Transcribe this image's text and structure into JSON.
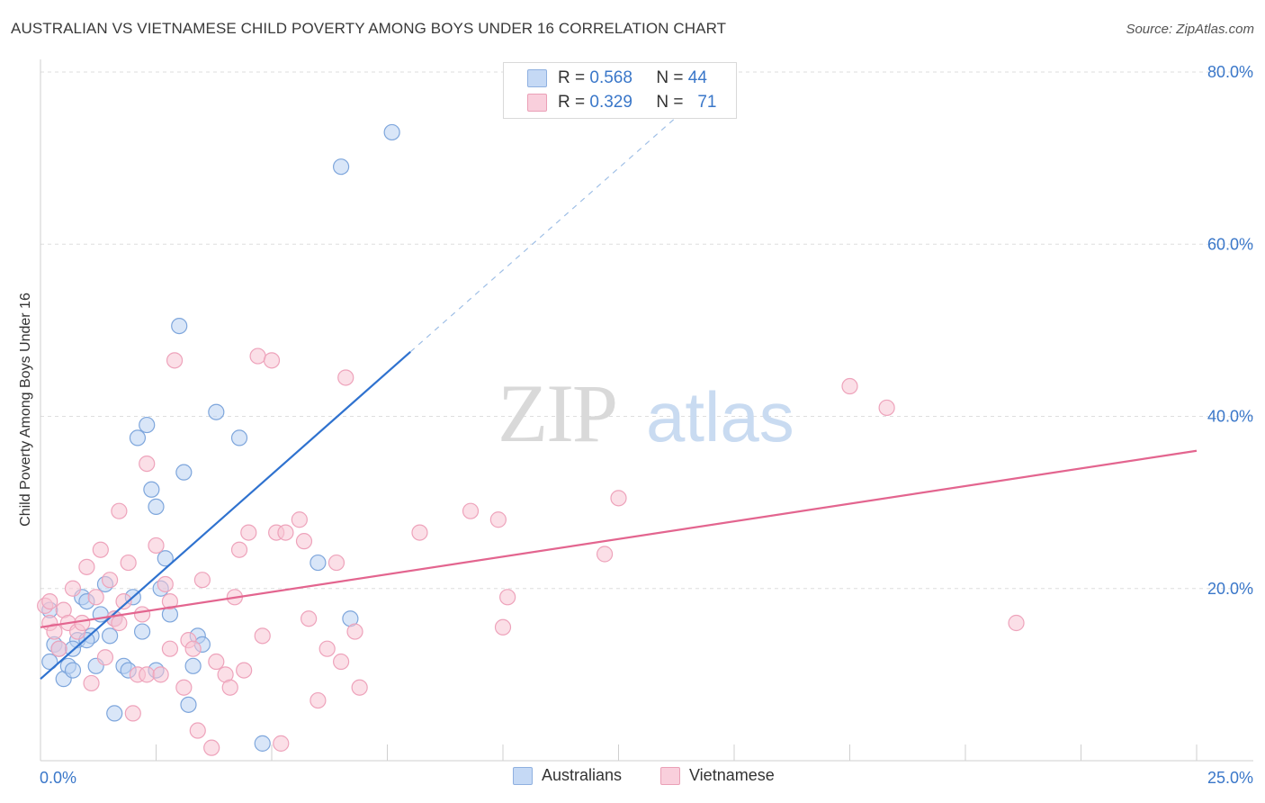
{
  "title": "AUSTRALIAN VS VIETNAMESE CHILD POVERTY AMONG BOYS UNDER 16 CORRELATION CHART",
  "source": "Source: ZipAtlas.com",
  "watermark": {
    "zip": "ZIP",
    "atlas": "atlas"
  },
  "legend": {
    "r_label": "R =",
    "n_label": "N =",
    "rows": [
      {
        "r": "0.568",
        "n": "44"
      },
      {
        "r": "0.329",
        "n": "71"
      }
    ]
  },
  "bottom_legend": [
    "Australians",
    "Vietnamese"
  ],
  "chart_data": {
    "type": "scatter",
    "title": "AUSTRALIAN VS VIETNAMESE CHILD POVERTY AMONG BOYS UNDER 16 CORRELATION CHART",
    "ylabel": "Child Poverty Among Boys Under 16",
    "xlabel": "",
    "xlim": [
      0,
      25
    ],
    "ylim": [
      0,
      80
    ],
    "x_tick_labels": [
      "0.0%",
      "25.0%"
    ],
    "y_tick_labels": [
      "20.0%",
      "40.0%",
      "60.0%",
      "80.0%"
    ],
    "y_ticks": [
      20,
      40,
      60,
      80
    ],
    "grid": true,
    "colors": {
      "australians": "#4f8bd6",
      "vietnamese": "#e8729a",
      "australians_fill": "#b9d2f2",
      "vietnamese_fill": "#f7c4d4",
      "tick_label": "#3a77c9"
    },
    "series": [
      {
        "name": "Australians",
        "trend": {
          "x0": 0.0,
          "y0": 9.5,
          "x1": 8.0,
          "y1": 47.5,
          "dash_to_x": 13.8,
          "dash_to_y": 75.0
        },
        "points": [
          [
            0.2,
            11.5
          ],
          [
            0.3,
            13.5
          ],
          [
            0.4,
            13.0
          ],
          [
            0.5,
            9.5
          ],
          [
            0.6,
            11.0
          ],
          [
            0.7,
            10.5
          ],
          [
            0.8,
            14.0
          ],
          [
            0.9,
            19.0
          ],
          [
            1.0,
            18.5
          ],
          [
            1.1,
            14.5
          ],
          [
            1.2,
            11.0
          ],
          [
            1.3,
            17.0
          ],
          [
            1.4,
            20.5
          ],
          [
            1.5,
            14.5
          ],
          [
            1.6,
            16.5
          ],
          [
            1.8,
            11.0
          ],
          [
            1.9,
            10.5
          ],
          [
            2.0,
            19.0
          ],
          [
            2.1,
            37.5
          ],
          [
            2.2,
            15.0
          ],
          [
            2.3,
            39.0
          ],
          [
            2.4,
            31.5
          ],
          [
            2.5,
            10.5
          ],
          [
            2.5,
            29.5
          ],
          [
            2.6,
            20.0
          ],
          [
            2.7,
            23.5
          ],
          [
            2.8,
            17.0
          ],
          [
            3.0,
            50.5
          ],
          [
            3.1,
            33.5
          ],
          [
            3.2,
            6.5
          ],
          [
            3.3,
            11.0
          ],
          [
            3.4,
            14.5
          ],
          [
            3.5,
            13.5
          ],
          [
            3.8,
            40.5
          ],
          [
            4.3,
            37.5
          ],
          [
            4.8,
            2.0
          ],
          [
            6.0,
            23.0
          ],
          [
            6.5,
            69.0
          ],
          [
            6.7,
            16.5
          ],
          [
            7.6,
            73.0
          ],
          [
            1.6,
            5.5
          ],
          [
            0.2,
            17.5
          ],
          [
            1.0,
            14.0
          ],
          [
            0.7,
            13.0
          ]
        ]
      },
      {
        "name": "Vietnamese",
        "trend": {
          "x0": 0.0,
          "y0": 15.5,
          "x1": 25.0,
          "y1": 36.0
        },
        "points": [
          [
            0.1,
            18.0
          ],
          [
            0.2,
            16.0
          ],
          [
            0.3,
            15.0
          ],
          [
            0.4,
            13.0
          ],
          [
            0.5,
            17.5
          ],
          [
            0.6,
            16.0
          ],
          [
            0.7,
            20.0
          ],
          [
            0.8,
            15.0
          ],
          [
            0.9,
            16.0
          ],
          [
            1.0,
            22.5
          ],
          [
            1.1,
            9.0
          ],
          [
            1.2,
            19.0
          ],
          [
            1.3,
            24.5
          ],
          [
            1.4,
            12.0
          ],
          [
            1.5,
            21.0
          ],
          [
            1.6,
            16.5
          ],
          [
            1.7,
            29.0
          ],
          [
            1.8,
            18.5
          ],
          [
            1.9,
            23.0
          ],
          [
            2.0,
            5.5
          ],
          [
            2.1,
            10.0
          ],
          [
            2.2,
            17.0
          ],
          [
            2.3,
            10.0
          ],
          [
            2.3,
            34.5
          ],
          [
            2.5,
            25.0
          ],
          [
            2.6,
            10.0
          ],
          [
            2.7,
            20.5
          ],
          [
            2.8,
            18.5
          ],
          [
            2.9,
            46.5
          ],
          [
            3.1,
            8.5
          ],
          [
            3.2,
            14.0
          ],
          [
            3.3,
            13.0
          ],
          [
            3.4,
            3.5
          ],
          [
            3.5,
            21.0
          ],
          [
            3.7,
            1.5
          ],
          [
            3.8,
            11.5
          ],
          [
            4.0,
            10.0
          ],
          [
            4.1,
            8.5
          ],
          [
            4.2,
            19.0
          ],
          [
            4.3,
            24.5
          ],
          [
            4.4,
            10.5
          ],
          [
            4.5,
            26.5
          ],
          [
            4.7,
            47.0
          ],
          [
            4.8,
            14.5
          ],
          [
            5.0,
            46.5
          ],
          [
            5.1,
            26.5
          ],
          [
            5.2,
            2.0
          ],
          [
            5.3,
            26.5
          ],
          [
            5.6,
            28.0
          ],
          [
            5.7,
            25.5
          ],
          [
            5.8,
            16.5
          ],
          [
            6.0,
            7.0
          ],
          [
            6.2,
            13.0
          ],
          [
            6.4,
            23.0
          ],
          [
            6.5,
            11.5
          ],
          [
            6.6,
            44.5
          ],
          [
            6.8,
            15.0
          ],
          [
            6.9,
            8.5
          ],
          [
            8.2,
            26.5
          ],
          [
            9.3,
            29.0
          ],
          [
            9.9,
            28.0
          ],
          [
            10.0,
            15.5
          ],
          [
            10.1,
            19.0
          ],
          [
            12.2,
            24.0
          ],
          [
            12.5,
            30.5
          ],
          [
            17.5,
            43.5
          ],
          [
            18.3,
            41.0
          ],
          [
            21.1,
            16.0
          ],
          [
            0.2,
            18.5
          ],
          [
            1.7,
            16.0
          ],
          [
            2.8,
            13.0
          ]
        ]
      }
    ]
  }
}
